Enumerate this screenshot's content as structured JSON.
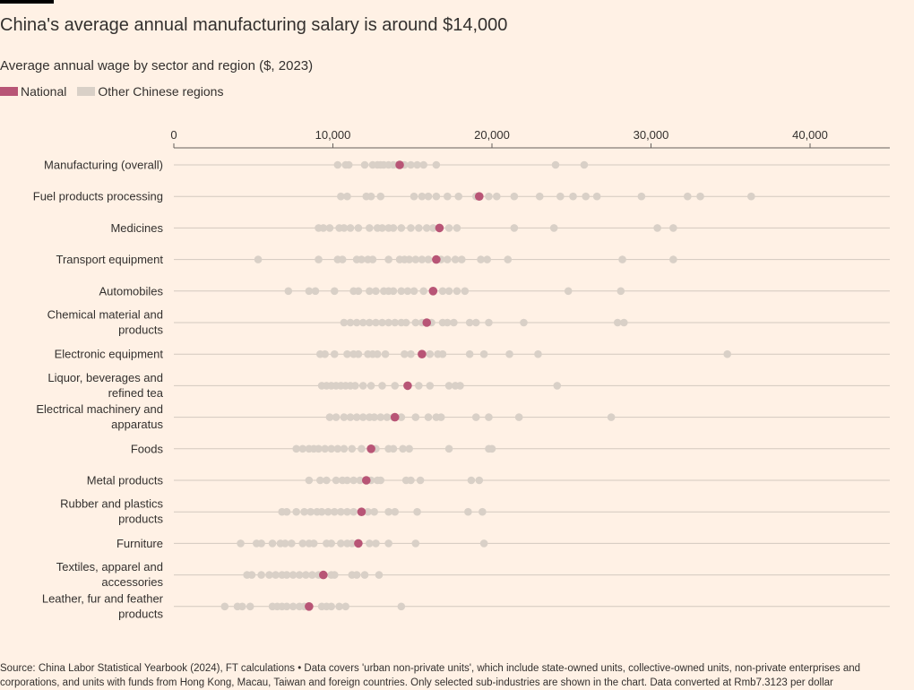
{
  "title": "China's average annual manufacturing salary is around $14,000",
  "subtitle": "Average annual wage by sector and region ($, 2023)",
  "legend": [
    {
      "label": "National",
      "color": "#b85576"
    },
    {
      "label": "Other Chinese regions",
      "color": "#d9d0c7"
    }
  ],
  "source": "Source: China Labor Statistical Yearbook (2024), FT calculations • Data covers 'urban non-private units', which include state-owned units, collective-owned units, non-private enterprises and corporations, and units with funds from Hong Kong, Macau, Taiwan and foreign countries. Only selected sub-industries are shown in the chart. Data converted at Rmb7.3123 per dollar",
  "chart_data": {
    "type": "scatter",
    "xlim": [
      0,
      45000
    ],
    "xticks": [
      0,
      10000,
      20000,
      30000,
      40000
    ],
    "xtick_labels": [
      "0",
      "10,000",
      "20,000",
      "30,000",
      "40,000"
    ],
    "axis_position": "top",
    "grid": true,
    "series": [
      {
        "name": "National",
        "color": "#b85576"
      },
      {
        "name": "Other Chinese regions",
        "color": "#d9d0c7"
      }
    ],
    "rows": [
      {
        "label": "Manufacturing (overall)",
        "national": 14200,
        "regions": [
          10300,
          10800,
          11000,
          12000,
          12500,
          12800,
          13000,
          13200,
          13500,
          13800,
          14100,
          14500,
          14900,
          15300,
          15700,
          16500,
          24000,
          25800
        ]
      },
      {
        "label": "Fuel products processing",
        "national": 19200,
        "regions": [
          10500,
          10900,
          12100,
          12400,
          13000,
          15100,
          15600,
          16000,
          16500,
          17200,
          17900,
          19000,
          19800,
          20300,
          21400,
          23000,
          24300,
          25100,
          25900,
          26600,
          29400,
          32300,
          33100,
          36300
        ]
      },
      {
        "label": "Medicines",
        "national": 16700,
        "regions": [
          9100,
          9400,
          9800,
          10400,
          10700,
          11100,
          11600,
          12300,
          12800,
          13100,
          13500,
          13800,
          14300,
          14900,
          15400,
          15900,
          16300,
          17300,
          17800,
          21400,
          23900,
          30400,
          31400
        ]
      },
      {
        "label": "Transport equipment",
        "national": 16500,
        "regions": [
          5300,
          9100,
          10300,
          10600,
          11500,
          11800,
          12200,
          12500,
          13500,
          14200,
          14500,
          14800,
          15200,
          15600,
          16000,
          16800,
          17200,
          17700,
          18100,
          19300,
          19700,
          21000,
          28200,
          31400
        ]
      },
      {
        "label": "Automobiles",
        "national": 16300,
        "regions": [
          7200,
          8500,
          8900,
          10100,
          11300,
          11600,
          12300,
          12700,
          13200,
          13500,
          13800,
          14300,
          14700,
          15100,
          15700,
          16900,
          17300,
          17800,
          18300,
          24800,
          28100
        ]
      },
      {
        "label": "Chemical material and products",
        "national": 15900,
        "regions": [
          10700,
          11100,
          11500,
          11900,
          12300,
          12700,
          13100,
          13500,
          13900,
          14300,
          14600,
          15200,
          15600,
          16200,
          16900,
          17200,
          17600,
          18600,
          19000,
          19800,
          22000,
          27900,
          28300
        ]
      },
      {
        "label": "Electronic equipment",
        "national": 15600,
        "regions": [
          9200,
          9500,
          10100,
          10900,
          11300,
          11600,
          12200,
          12500,
          12800,
          13300,
          14500,
          14900,
          16100,
          16600,
          16900,
          18600,
          19500,
          21100,
          22900,
          34800
        ]
      },
      {
        "label": "Liquor, beverages and refined tea",
        "national": 14700,
        "regions": [
          9300,
          9600,
          9900,
          10200,
          10500,
          10800,
          11100,
          11400,
          11900,
          12400,
          13100,
          13900,
          15400,
          16100,
          17300,
          17700,
          18000,
          24100
        ]
      },
      {
        "label": "Electrical machinery and apparatus",
        "national": 13900,
        "regions": [
          9800,
          10200,
          10700,
          11100,
          11500,
          11900,
          12300,
          12600,
          13000,
          13400,
          13800,
          14300,
          15200,
          16000,
          16500,
          16800,
          19000,
          19800,
          21700,
          27500
        ]
      },
      {
        "label": "Foods",
        "national": 12400,
        "regions": [
          7700,
          8100,
          8500,
          8800,
          9100,
          9500,
          9900,
          10300,
          10700,
          11200,
          11800,
          12700,
          13500,
          13800,
          14400,
          14800,
          17300,
          19800,
          20000
        ]
      },
      {
        "label": "Metal products",
        "national": 12100,
        "regions": [
          8500,
          9200,
          9600,
          10200,
          10600,
          10900,
          11300,
          11700,
          12400,
          12800,
          13000,
          14600,
          14900,
          15500,
          18700,
          19200
        ]
      },
      {
        "label": "Rubber and plastics products",
        "national": 11800,
        "regions": [
          6800,
          7100,
          7700,
          8200,
          8600,
          9000,
          9300,
          9700,
          10100,
          10500,
          10900,
          11300,
          12200,
          12600,
          13500,
          13900,
          15300,
          18500,
          19400
        ]
      },
      {
        "label": "Furniture",
        "national": 11600,
        "regions": [
          4200,
          5200,
          5500,
          6200,
          6700,
          7000,
          7400,
          8100,
          8500,
          8800,
          9600,
          9900,
          10500,
          10900,
          11200,
          12300,
          12700,
          13500,
          15200,
          19500
        ]
      },
      {
        "label": "Textiles, apparel and accessories",
        "national": 9400,
        "regions": [
          4600,
          4900,
          5500,
          6000,
          6400,
          6800,
          7100,
          7500,
          7900,
          8300,
          8700,
          9100,
          9900,
          10100,
          11200,
          11500,
          12000,
          12900
        ]
      },
      {
        "label": "Leather, fur and feather products",
        "national": 8500,
        "regions": [
          3200,
          4000,
          4300,
          4800,
          6200,
          6500,
          6800,
          7100,
          7500,
          7900,
          8200,
          9300,
          9600,
          9900,
          10400,
          10800,
          14300
        ]
      }
    ]
  }
}
